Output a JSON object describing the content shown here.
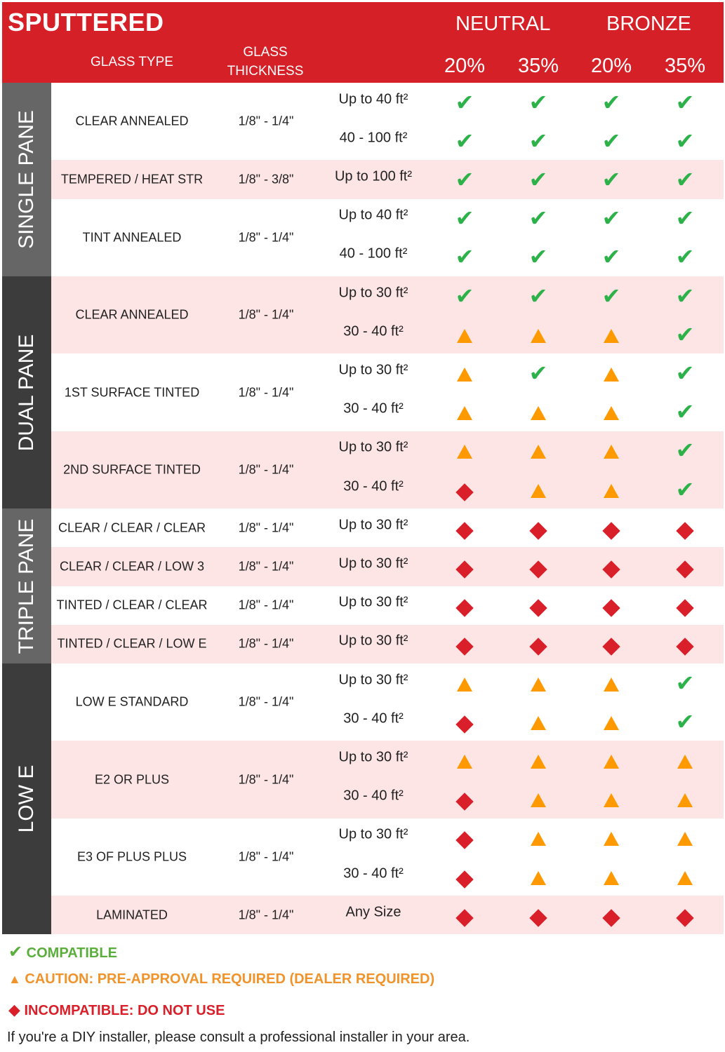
{
  "header": {
    "title": "SPUTTERED",
    "glass_type": "GLASS TYPE",
    "glass_thickness_1": "GLASS",
    "glass_thickness_2": "THICKNESS",
    "groups": [
      "NEUTRAL",
      "BRONZE"
    ],
    "percentages": [
      "20%",
      "35%",
      "20%",
      "35%"
    ]
  },
  "colors": {
    "header": "#d62027",
    "pink_row": "#fde4e5",
    "compatible": "#2db24a",
    "caution": "#ff9900",
    "incompatible": "#d9202a"
  },
  "sections": [
    {
      "label": "SINGLE PANE",
      "color": "#666666",
      "rows": [
        {
          "type": "CLEAR ANNEALED",
          "thickness": "1/8\" - 1/4\"",
          "sizes": [
            {
              "size": "Up to 40 ft²",
              "ratings": [
                "compatible",
                "compatible",
                "compatible",
                "compatible"
              ]
            },
            {
              "size": "40 - 100 ft²",
              "ratings": [
                "compatible",
                "compatible",
                "compatible",
                "compatible"
              ]
            }
          ]
        },
        {
          "type": "TEMPERED / HEAT STR",
          "thickness": "1/8\" - 3/8\"",
          "sizes": [
            {
              "size": "Up to 100 ft²",
              "ratings": [
                "compatible",
                "compatible",
                "compatible",
                "compatible"
              ]
            }
          ]
        },
        {
          "type": "TINT ANNEALED",
          "thickness": "1/8\" - 1/4\"",
          "sizes": [
            {
              "size": "Up to 40 ft²",
              "ratings": [
                "compatible",
                "compatible",
                "compatible",
                "compatible"
              ]
            },
            {
              "size": "40 - 100 ft²",
              "ratings": [
                "compatible",
                "compatible",
                "compatible",
                "compatible"
              ]
            }
          ]
        }
      ]
    },
    {
      "label": "DUAL PANE",
      "color": "#3c3c3c",
      "rows": [
        {
          "type": "CLEAR ANNEALED",
          "thickness": "1/8\" - 1/4\"",
          "sizes": [
            {
              "size": "Up to 30 ft²",
              "ratings": [
                "compatible",
                "compatible",
                "compatible",
                "compatible"
              ]
            },
            {
              "size": "30 - 40 ft²",
              "ratings": [
                "caution",
                "caution",
                "caution",
                "compatible"
              ]
            }
          ]
        },
        {
          "type": "1ST SURFACE TINTED",
          "thickness": "1/8\" - 1/4\"",
          "sizes": [
            {
              "size": "Up to 30 ft²",
              "ratings": [
                "caution",
                "compatible",
                "caution",
                "compatible"
              ]
            },
            {
              "size": "30 - 40 ft²",
              "ratings": [
                "caution",
                "caution",
                "caution",
                "compatible"
              ]
            }
          ]
        },
        {
          "type": "2ND SURFACE TINTED",
          "thickness": "1/8\" - 1/4\"",
          "sizes": [
            {
              "size": "Up to 30 ft²",
              "ratings": [
                "caution",
                "caution",
                "caution",
                "compatible"
              ]
            },
            {
              "size": "30 - 40 ft²",
              "ratings": [
                "incompatible",
                "caution",
                "caution",
                "compatible"
              ]
            }
          ]
        }
      ]
    },
    {
      "label": "TRIPLE PANE",
      "color": "#666666",
      "rows": [
        {
          "type": "CLEAR / CLEAR / CLEAR",
          "thickness": "1/8\" - 1/4\"",
          "sizes": [
            {
              "size": "Up to 30 ft²",
              "ratings": [
                "incompatible",
                "incompatible",
                "incompatible",
                "incompatible"
              ]
            }
          ]
        },
        {
          "type": "CLEAR / CLEAR / LOW 3",
          "thickness": "1/8\" - 1/4\"",
          "sizes": [
            {
              "size": "Up to 30 ft²",
              "ratings": [
                "incompatible",
                "incompatible",
                "incompatible",
                "incompatible"
              ]
            }
          ]
        },
        {
          "type": "TINTED / CLEAR / CLEAR",
          "thickness": "1/8\" - 1/4\"",
          "sizes": [
            {
              "size": "Up to 30 ft²",
              "ratings": [
                "incompatible",
                "incompatible",
                "incompatible",
                "incompatible"
              ]
            }
          ]
        },
        {
          "type": "TINTED / CLEAR / LOW E",
          "thickness": "1/8\" - 1/4\"",
          "sizes": [
            {
              "size": "Up to 30 ft²",
              "ratings": [
                "incompatible",
                "incompatible",
                "incompatible",
                "incompatible"
              ]
            }
          ]
        }
      ]
    },
    {
      "label": "LOW E",
      "color": "#3c3c3c",
      "rows": [
        {
          "type": "LOW E STANDARD",
          "thickness": "1/8\" - 1/4\"",
          "sizes": [
            {
              "size": "Up to 30 ft²",
              "ratings": [
                "caution",
                "caution",
                "caution",
                "compatible"
              ]
            },
            {
              "size": "30 - 40 ft²",
              "ratings": [
                "incompatible",
                "caution",
                "caution",
                "compatible"
              ]
            }
          ]
        },
        {
          "type": "E2 OR PLUS",
          "thickness": "1/8\" - 1/4\"",
          "sizes": [
            {
              "size": "Up to 30 ft²",
              "ratings": [
                "caution",
                "caution",
                "caution",
                "caution"
              ]
            },
            {
              "size": "30 - 40 ft²",
              "ratings": [
                "incompatible",
                "caution",
                "caution",
                "caution"
              ]
            }
          ]
        },
        {
          "type": "E3 OF PLUS PLUS",
          "thickness": "1/8\" - 1/4\"",
          "sizes": [
            {
              "size": "Up to 30 ft²",
              "ratings": [
                "incompatible",
                "caution",
                "caution",
                "caution"
              ]
            },
            {
              "size": "30 - 40 ft²",
              "ratings": [
                "incompatible",
                "caution",
                "caution",
                "caution"
              ]
            }
          ]
        },
        {
          "type": "LAMINATED",
          "thickness": "1/8\" - 1/4\"",
          "sizes": [
            {
              "size": "Any Size",
              "ratings": [
                "incompatible",
                "incompatible",
                "incompatible",
                "incompatible"
              ]
            }
          ]
        }
      ]
    }
  ],
  "legend": {
    "compatible": "COMPATIBLE",
    "caution": "CAUTION: PRE-APPROVAL REQUIRED (DEALER REQUIRED)",
    "incompatible": "INCOMPATIBLE: DO NOT USE",
    "note": "If you're a DIY installer, please consult a professional installer in your area."
  }
}
